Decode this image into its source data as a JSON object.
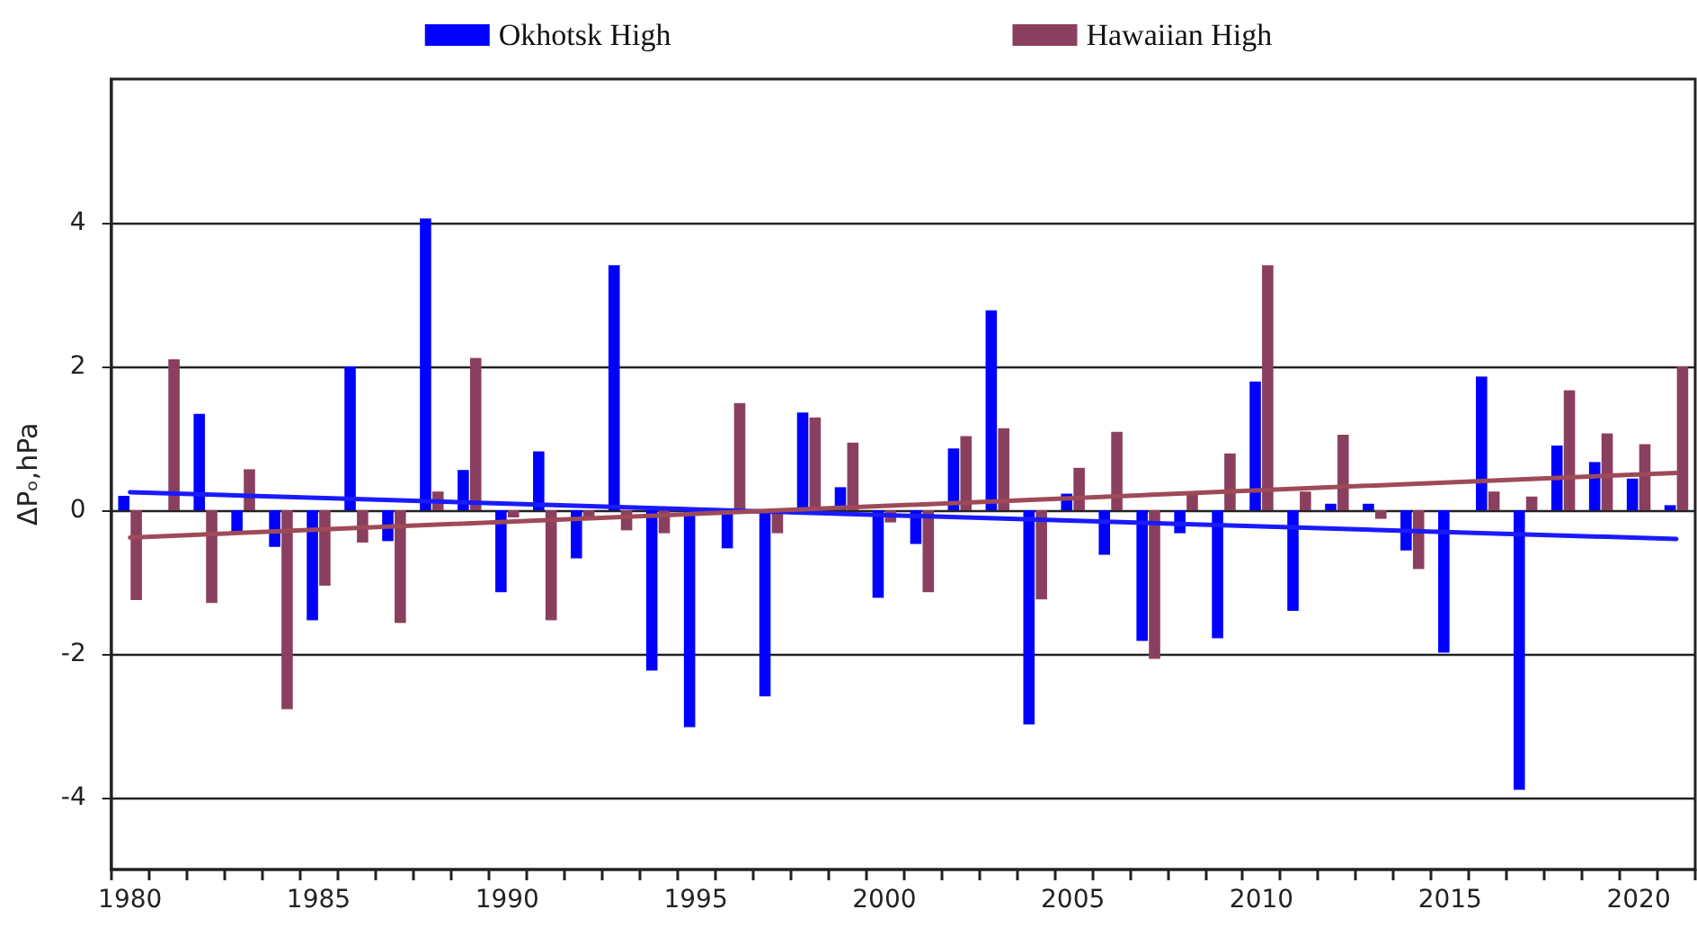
{
  "chart_data": {
    "type": "bar",
    "ylabel": "ΔPₒ,hPa",
    "categories": [
      "1980",
      null,
      null,
      null,
      null,
      "1985",
      null,
      null,
      null,
      null,
      "1990",
      null,
      null,
      null,
      null,
      "1995",
      null,
      null,
      null,
      null,
      "2000",
      null,
      null,
      null,
      null,
      "2005",
      null,
      null,
      null,
      null,
      "2010",
      null,
      null,
      null,
      null,
      "2015",
      null,
      null,
      null,
      null,
      "2020",
      null
    ],
    "series": [
      {
        "name": "Okhotsk High",
        "color": "#0000ff",
        "values": [
          0.2,
          0,
          1.34,
          -0.32,
          -0.51,
          -1.53,
          2.0,
          -0.43,
          4.06,
          0.56,
          -1.14,
          0.82,
          -0.67,
          3.41,
          -2.23,
          -3.02,
          -0.53,
          -2.59,
          1.36,
          0.32,
          -1.22,
          -0.47,
          0.86,
          2.78,
          -2.98,
          0.23,
          -0.62,
          -1.82,
          -0.32,
          -1.78,
          1.79,
          -1.4,
          0.09,
          0.09,
          -0.56,
          -1.98,
          1.86,
          -3.89,
          0.9,
          0.67,
          0.44,
          0.07
        ]
      },
      {
        "name": "Hawaiian High",
        "color": "#8b3f5e",
        "values": [
          -1.25,
          2.1,
          -1.29,
          0.57,
          -2.77,
          -1.05,
          -0.45,
          -1.57,
          0.26,
          2.12,
          -0.1,
          -1.53,
          -0.1,
          -0.28,
          -0.32,
          0,
          1.49,
          -0.32,
          1.29,
          0.94,
          -0.17,
          -1.14,
          1.03,
          1.14,
          -1.24,
          0.59,
          1.09,
          -2.07,
          0.22,
          0.79,
          3.41,
          0.26,
          1.05,
          -0.12,
          -0.82,
          0,
          0.26,
          0.19,
          1.67,
          1.07,
          0.92,
          2.0
        ]
      },
      {
        "type": "line",
        "color": "#1a1aff",
        "values": [
          0.25,
          null,
          null,
          null,
          null,
          null,
          null,
          null,
          null,
          null,
          null,
          null,
          null,
          null,
          null,
          null,
          null,
          null,
          null,
          null,
          null,
          null,
          null,
          null,
          null,
          null,
          null,
          null,
          null,
          null,
          null,
          null,
          null,
          null,
          null,
          null,
          null,
          null,
          null,
          null,
          null,
          -0.4
        ]
      },
      {
        "type": "line",
        "color": "#9e4a58",
        "values": [
          -0.38,
          null,
          null,
          null,
          null,
          null,
          null,
          null,
          null,
          null,
          null,
          null,
          null,
          null,
          null,
          null,
          null,
          null,
          null,
          null,
          null,
          null,
          null,
          null,
          null,
          null,
          null,
          null,
          null,
          null,
          null,
          null,
          null,
          null,
          null,
          null,
          null,
          null,
          null,
          null,
          null,
          0.52
        ]
      }
    ],
    "ylim": [
      -5,
      6
    ],
    "yticks": [
      -4,
      -2,
      0,
      2,
      4
    ],
    "grid": "y",
    "legend": "top",
    "marker": "none"
  }
}
